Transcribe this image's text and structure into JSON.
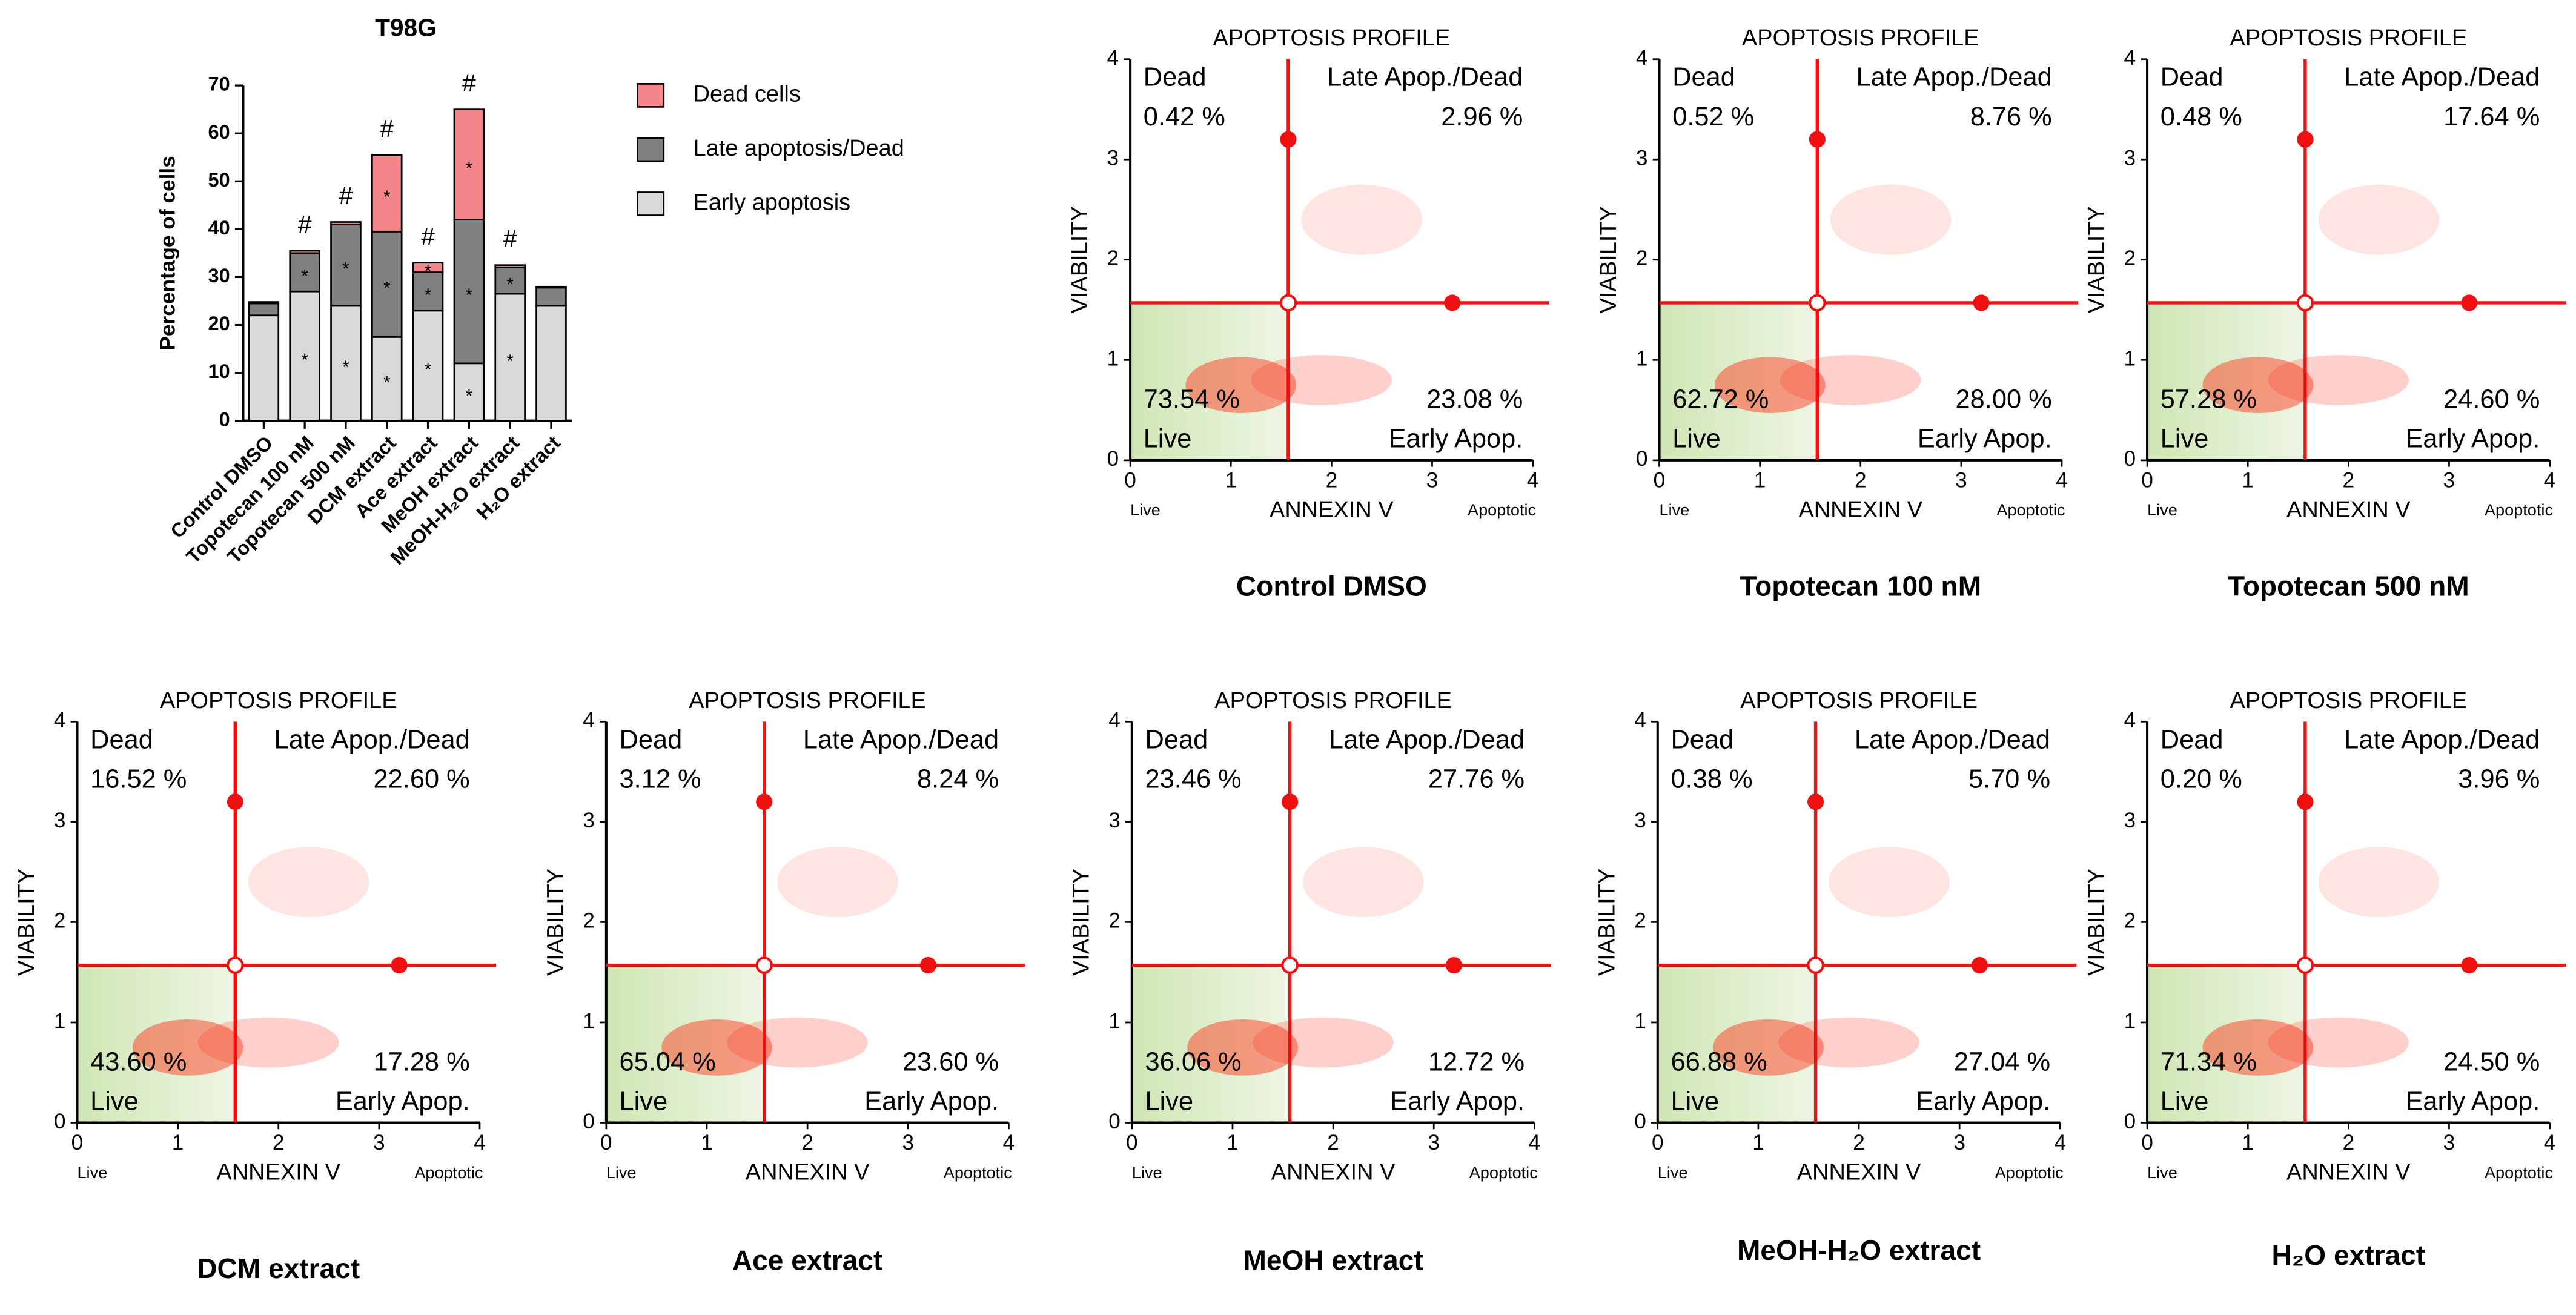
{
  "chart_data": [
    {
      "type": "bar",
      "title": "T98G",
      "ylabel": "Percentage of cells",
      "categories": [
        "Control DMSO",
        "Topotecan 100 nM",
        "Topotecan 500 nM",
        "DCM extract",
        "Ace extract",
        "MeOH extract",
        "MeOH-H₂O extract",
        "H₂O extract"
      ],
      "series": [
        {
          "name": "Early apoptosis",
          "color": "#d9d9d9",
          "values": [
            22,
            27,
            24,
            17.5,
            23,
            12,
            26.5,
            24
          ],
          "markers": [
            null,
            "*",
            "*",
            "*",
            "*",
            "*",
            "*",
            null
          ]
        },
        {
          "name": "Late apoptosis/Dead",
          "color": "#808080",
          "values": [
            2.5,
            8,
            17,
            22,
            8,
            30,
            5.5,
            3.8
          ],
          "markers": [
            null,
            "*",
            "*",
            "*",
            "*",
            "*",
            "*",
            null
          ]
        },
        {
          "name": "Dead cells",
          "color": "#f4858a",
          "values": [
            0.3,
            0.5,
            0.5,
            16,
            2,
            23,
            0.5,
            0.2
          ],
          "markers": [
            null,
            null,
            null,
            "*",
            "*",
            "*",
            null,
            null
          ]
        }
      ],
      "significance": [
        null,
        "#",
        "#",
        "#",
        "#",
        "#",
        "#",
        null
      ],
      "ylim": [
        0,
        70
      ],
      "yticks": [
        0,
        10,
        20,
        30,
        40,
        50,
        60,
        70
      ]
    },
    {
      "type": "quadrant",
      "title": "APOPTOSIS PROFILE",
      "xlabel": "ANNEXIN V",
      "ylabel": "VIABILITY",
      "x_end_labels": [
        "Live",
        "Apoptotic"
      ],
      "caption": "Control DMSO",
      "quadrant_names": [
        "Dead",
        "Late Apop./Dead",
        "Live",
        "Early Apop."
      ],
      "values": [
        0.42,
        2.96,
        73.54,
        23.08
      ],
      "value_labels": [
        "0.42 %",
        "2.96 %",
        "73.54 %",
        "23.08 %"
      ],
      "gate": [
        1.57,
        1.57
      ],
      "handles": [
        [
          1.57,
          3.2
        ],
        [
          3.2,
          1.57
        ]
      ],
      "xlim": [
        0,
        4
      ],
      "ylim": [
        0,
        4
      ],
      "xticks": [
        0,
        1,
        2,
        3,
        4
      ],
      "yticks": [
        0,
        1,
        2,
        3,
        4
      ]
    },
    {
      "type": "quadrant",
      "title": "APOPTOSIS PROFILE",
      "xlabel": "ANNEXIN V",
      "ylabel": "VIABILITY",
      "x_end_labels": [
        "Live",
        "Apoptotic"
      ],
      "caption": "Topotecan 100 nM",
      "quadrant_names": [
        "Dead",
        "Late Apop./Dead",
        "Live",
        "Early Apop."
      ],
      "values": [
        0.52,
        8.76,
        62.72,
        28.0
      ],
      "value_labels": [
        "0.52 %",
        "8.76 %",
        "62.72 %",
        "28.00 %"
      ],
      "gate": [
        1.57,
        1.57
      ],
      "handles": [
        [
          1.57,
          3.2
        ],
        [
          3.2,
          1.57
        ]
      ],
      "xlim": [
        0,
        4
      ],
      "ylim": [
        0,
        4
      ],
      "xticks": [
        0,
        1,
        2,
        3,
        4
      ],
      "yticks": [
        0,
        1,
        2,
        3,
        4
      ]
    },
    {
      "type": "quadrant",
      "title": "APOPTOSIS PROFILE",
      "xlabel": "ANNEXIN V",
      "ylabel": "VIABILITY",
      "x_end_labels": [
        "Live",
        "Apoptotic"
      ],
      "caption": "Topotecan 500 nM",
      "quadrant_names": [
        "Dead",
        "Late Apop./Dead",
        "Live",
        "Early Apop."
      ],
      "values": [
        0.48,
        17.64,
        57.28,
        24.6
      ],
      "value_labels": [
        "0.48 %",
        "17.64 %",
        "57.28 %",
        "24.60 %"
      ],
      "gate": [
        1.57,
        1.57
      ],
      "handles": [
        [
          1.57,
          3.2
        ],
        [
          3.2,
          1.57
        ]
      ],
      "xlim": [
        0,
        4
      ],
      "ylim": [
        0,
        4
      ],
      "xticks": [
        0,
        1,
        2,
        3,
        4
      ],
      "yticks": [
        0,
        1,
        2,
        3,
        4
      ]
    },
    {
      "type": "quadrant",
      "title": "APOPTOSIS PROFILE",
      "xlabel": "ANNEXIN V",
      "ylabel": "VIABILITY",
      "x_end_labels": [
        "Live",
        "Apoptotic"
      ],
      "caption": "DCM extract",
      "quadrant_names": [
        "Dead",
        "Late Apop./Dead",
        "Live",
        "Early Apop."
      ],
      "values": [
        16.52,
        22.6,
        43.6,
        17.28
      ],
      "value_labels": [
        "16.52 %",
        "22.60 %",
        "43.60 %",
        "17.28 %"
      ],
      "gate": [
        1.57,
        1.57
      ],
      "handles": [
        [
          1.57,
          3.2
        ],
        [
          3.2,
          1.57
        ]
      ],
      "xlim": [
        0,
        4
      ],
      "ylim": [
        0,
        4
      ],
      "xticks": [
        0,
        1,
        2,
        3,
        4
      ],
      "yticks": [
        0,
        1,
        2,
        3,
        4
      ]
    },
    {
      "type": "quadrant",
      "title": "APOPTOSIS PROFILE",
      "xlabel": "ANNEXIN V",
      "ylabel": "VIABILITY",
      "x_end_labels": [
        "Live",
        "Apoptotic"
      ],
      "caption": "Ace extract",
      "quadrant_names": [
        "Dead",
        "Late Apop./Dead",
        "Live",
        "Early Apop."
      ],
      "values": [
        3.12,
        8.24,
        65.04,
        23.6
      ],
      "value_labels": [
        "3.12 %",
        "8.24 %",
        "65.04 %",
        "23.60 %"
      ],
      "gate": [
        1.57,
        1.57
      ],
      "handles": [
        [
          1.57,
          3.2
        ],
        [
          3.2,
          1.57
        ]
      ],
      "xlim": [
        0,
        4
      ],
      "ylim": [
        0,
        4
      ],
      "xticks": [
        0,
        1,
        2,
        3,
        4
      ],
      "yticks": [
        0,
        1,
        2,
        3,
        4
      ]
    },
    {
      "type": "quadrant",
      "title": "APOPTOSIS PROFILE",
      "xlabel": "ANNEXIN V",
      "ylabel": "VIABILITY",
      "x_end_labels": [
        "Live",
        "Apoptotic"
      ],
      "caption": "MeOH extract",
      "quadrant_names": [
        "Dead",
        "Late Apop./Dead",
        "Live",
        "Early Apop."
      ],
      "values": [
        23.46,
        27.76,
        36.06,
        12.72
      ],
      "value_labels": [
        "23.46 %",
        "27.76 %",
        "36.06 %",
        "12.72 %"
      ],
      "gate": [
        1.57,
        1.57
      ],
      "handles": [
        [
          1.57,
          3.2
        ],
        [
          3.2,
          1.57
        ]
      ],
      "xlim": [
        0,
        4
      ],
      "ylim": [
        0,
        4
      ],
      "xticks": [
        0,
        1,
        2,
        3,
        4
      ],
      "yticks": [
        0,
        1,
        2,
        3,
        4
      ]
    },
    {
      "type": "quadrant",
      "title": "APOPTOSIS PROFILE",
      "xlabel": "ANNEXIN V",
      "ylabel": "VIABILITY",
      "x_end_labels": [
        "Live",
        "Apoptotic"
      ],
      "caption": "MeOH-H₂O extract",
      "quadrant_names": [
        "Dead",
        "Late Apop./Dead",
        "Live",
        "Early Apop."
      ],
      "values": [
        0.38,
        5.7,
        66.88,
        27.04
      ],
      "value_labels": [
        "0.38 %",
        "5.70 %",
        "66.88 %",
        "27.04 %"
      ],
      "gate": [
        1.57,
        1.57
      ],
      "handles": [
        [
          1.57,
          3.2
        ],
        [
          3.2,
          1.57
        ]
      ],
      "xlim": [
        0,
        4
      ],
      "ylim": [
        0,
        4
      ],
      "xticks": [
        0,
        1,
        2,
        3,
        4
      ],
      "yticks": [
        0,
        1,
        2,
        3,
        4
      ]
    },
    {
      "type": "quadrant",
      "title": "APOPTOSIS PROFILE",
      "xlabel": "ANNEXIN V",
      "ylabel": "VIABILITY",
      "x_end_labels": [
        "Live",
        "Apoptotic"
      ],
      "caption": "H₂O extract",
      "quadrant_names": [
        "Dead",
        "Late Apop./Dead",
        "Live",
        "Early Apop."
      ],
      "values": [
        0.2,
        3.96,
        71.34,
        24.5
      ],
      "value_labels": [
        "0.20 %",
        "3.96 %",
        "71.34 %",
        "24.50 %"
      ],
      "gate": [
        1.57,
        1.57
      ],
      "handles": [
        [
          1.57,
          3.2
        ],
        [
          3.2,
          1.57
        ]
      ],
      "xlim": [
        0,
        4
      ],
      "ylim": [
        0,
        4
      ],
      "xticks": [
        0,
        1,
        2,
        3,
        4
      ],
      "yticks": [
        0,
        1,
        2,
        3,
        4
      ]
    }
  ]
}
